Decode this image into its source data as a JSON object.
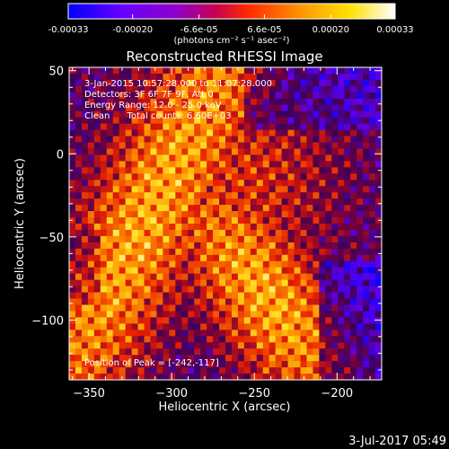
{
  "colorbar": {
    "tick_labels": [
      "-0.00033",
      "-0.00020",
      "-6.6e-05",
      "6.6e-05",
      "0.00020",
      "0.00033"
    ],
    "tick_values": [
      -0.00033,
      -0.0002,
      -6.6e-05,
      6.6e-05,
      0.0002,
      0.00033
    ],
    "range": [
      -0.00033,
      0.00033
    ],
    "unit_label": "(photons cm⁻² s⁻¹ asec⁻²)",
    "colors": [
      "#0000ff",
      "#6a00ff",
      "#b400b4",
      "#ff2a00",
      "#ff9a00",
      "#ffe000",
      "#ffffff"
    ]
  },
  "image": {
    "title": "Reconstructed RHESSI Image",
    "info_lines": [
      "3-Jan-2015 10:57:28.000 to 11:07:28.000",
      "Detectors: 3F 6F 7F 9F, Att 0",
      "Energy Range: 12.0 - 25.0 keV",
      "Clean      Total counts: 6.60E+03"
    ],
    "peak_label": "Position of Peak = [-242,-117]",
    "timestamp": "3-Jul-2017 05:49"
  },
  "chart_data": {
    "type": "heatmap",
    "title": "Reconstructed RHESSI Image",
    "xlabel": "Heliocentric X (arcsec)",
    "ylabel": "Heliocentric Y (arcsec)",
    "xlim": [
      -362,
      -173
    ],
    "ylim": [
      -136,
      52
    ],
    "x_ticks": [
      -350,
      -300,
      -250,
      -200
    ],
    "y_ticks": [
      50,
      0,
      -50,
      -100
    ],
    "x_tick_labels": [
      "−350",
      "−300",
      "−250",
      "−200"
    ],
    "y_tick_labels": [
      "50",
      "0",
      "−50",
      "−100"
    ],
    "peak_position": [
      -242,
      -117
    ],
    "color_range": [
      -0.00033,
      0.00033
    ]
  },
  "colors": {
    "background": "#000000",
    "foreground": "#ffffff"
  }
}
